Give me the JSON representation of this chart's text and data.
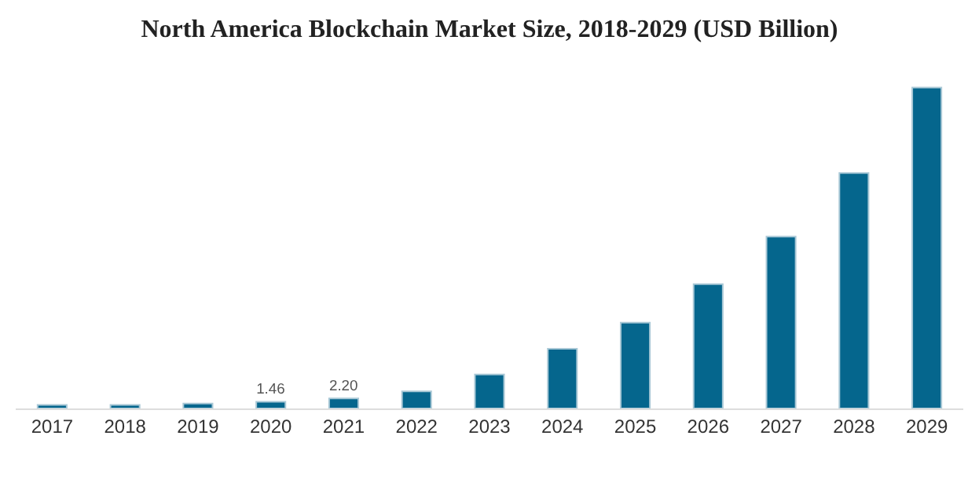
{
  "chart_data": {
    "type": "bar",
    "title": "North America Blockchain Market Size, 2018-2029 (USD Billion)",
    "categories": [
      "2017",
      "2018",
      "2019",
      "2020",
      "2021",
      "2022",
      "2023",
      "2024",
      "2025",
      "2026",
      "2027",
      "2028",
      "2029"
    ],
    "values": [
      0.8,
      0.8,
      1.1,
      1.46,
      2.2,
      3.8,
      7.5,
      13.2,
      19.0,
      27.5,
      38.0,
      52.1,
      71.0
    ],
    "value_labels": [
      null,
      null,
      null,
      "1.46",
      "2.20",
      null,
      null,
      null,
      null,
      null,
      null,
      null,
      null
    ],
    "color": "#05668d"
  }
}
